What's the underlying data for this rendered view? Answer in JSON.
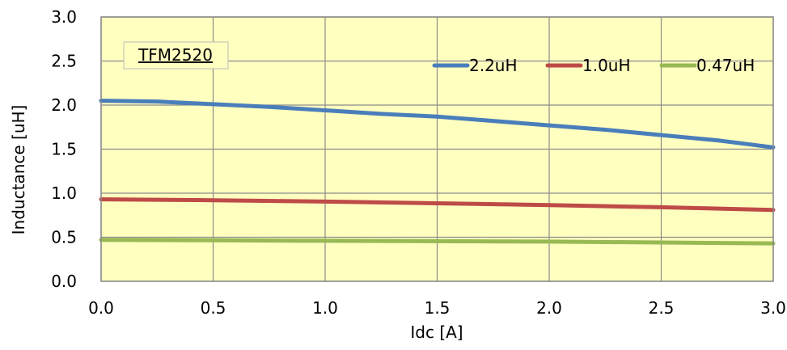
{
  "chart_data": {
    "type": "line",
    "title": "",
    "xlabel": "Idc [A]",
    "ylabel": "Inductance [uH]",
    "xlim": [
      0,
      3
    ],
    "ylim": [
      0,
      3
    ],
    "xticks": [
      "0.0",
      "0.5",
      "1.0",
      "1.5",
      "2.0",
      "2.5",
      "3.0"
    ],
    "yticks": [
      "0.0",
      "0.5",
      "1.0",
      "1.5",
      "2.0",
      "2.5",
      "3.0"
    ],
    "grid": true,
    "plot_background": "#FFFFC0",
    "annotation": "TFM2520",
    "legend_position": "top-right",
    "series": [
      {
        "name": "2.2uH",
        "color": "#4A7EBB",
        "x": [
          0,
          0.25,
          0.5,
          0.75,
          1.0,
          1.25,
          1.5,
          1.75,
          2.0,
          2.25,
          2.5,
          2.75,
          3.0
        ],
        "values": [
          2.05,
          2.04,
          2.01,
          1.98,
          1.94,
          1.9,
          1.87,
          1.82,
          1.77,
          1.72,
          1.66,
          1.6,
          1.52
        ]
      },
      {
        "name": "1.0uH",
        "color": "#BE4B48",
        "x": [
          0,
          0.5,
          1.0,
          1.5,
          2.0,
          2.5,
          3.0
        ],
        "values": [
          0.93,
          0.92,
          0.905,
          0.885,
          0.865,
          0.84,
          0.81
        ]
      },
      {
        "name": "0.47uH",
        "color": "#98B954",
        "x": [
          0,
          0.5,
          1.0,
          1.5,
          2.0,
          2.5,
          3.0
        ],
        "values": [
          0.47,
          0.465,
          0.46,
          0.455,
          0.45,
          0.44,
          0.43
        ]
      }
    ]
  }
}
